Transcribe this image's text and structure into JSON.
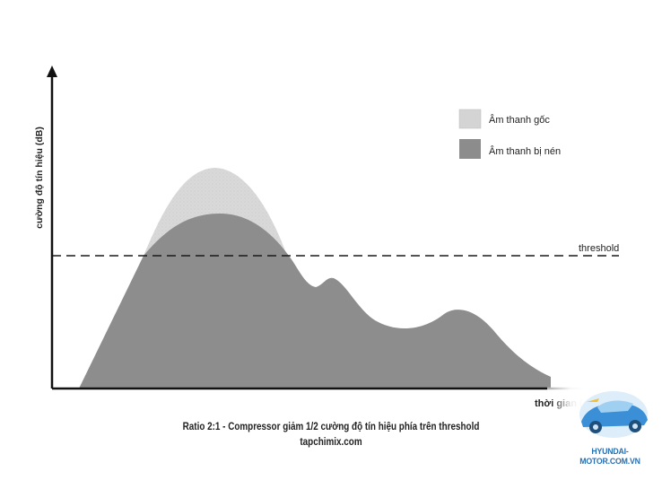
{
  "chart_data": {
    "type": "area",
    "xlabel": "thời gian (mili giây)",
    "ylabel": "cường độ tín hiệu (dB)",
    "threshold_label": "threshold",
    "legend_position": "top-right",
    "series": [
      {
        "name": "Âm thanh gốc",
        "color": "#d4d4d4"
      },
      {
        "name": "Âm thanh bị nén",
        "color": "#8c8c8c"
      }
    ]
  },
  "caption": {
    "line1": "Ratio 2:1 - Compressor giảm 1/2 cường độ tín hiệu phía trên threshold",
    "line2": "tapchimix.com"
  },
  "watermark": {
    "text": "HYUNDAI-MOTOR.COM.VN"
  }
}
